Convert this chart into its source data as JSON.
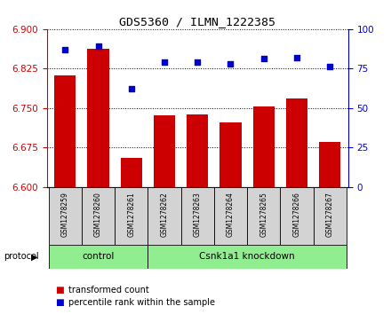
{
  "title": "GDS5360 / ILMN_1222385",
  "samples": [
    "GSM1278259",
    "GSM1278260",
    "GSM1278261",
    "GSM1278262",
    "GSM1278263",
    "GSM1278264",
    "GSM1278265",
    "GSM1278266",
    "GSM1278267"
  ],
  "bar_values": [
    6.812,
    6.862,
    6.655,
    6.735,
    6.738,
    6.723,
    6.752,
    6.768,
    6.686
  ],
  "percentile_values": [
    87,
    89,
    62,
    79,
    79,
    78,
    81,
    82,
    76
  ],
  "ylim_left": [
    6.6,
    6.9
  ],
  "ylim_right": [
    0,
    100
  ],
  "yticks_left": [
    6.6,
    6.675,
    6.75,
    6.825,
    6.9
  ],
  "yticks_right": [
    0,
    25,
    50,
    75,
    100
  ],
  "bar_color": "#cc0000",
  "dot_color": "#0000cc",
  "background_plot": "#ffffff",
  "background_sample": "#d3d3d3",
  "background_green": "#90ee90",
  "control_count": 3,
  "control_label": "control",
  "knockdown_label": "Csnk1a1 knockdown",
  "protocol_label": "protocol",
  "legend_bar_label": "transformed count",
  "legend_dot_label": "percentile rank within the sample"
}
